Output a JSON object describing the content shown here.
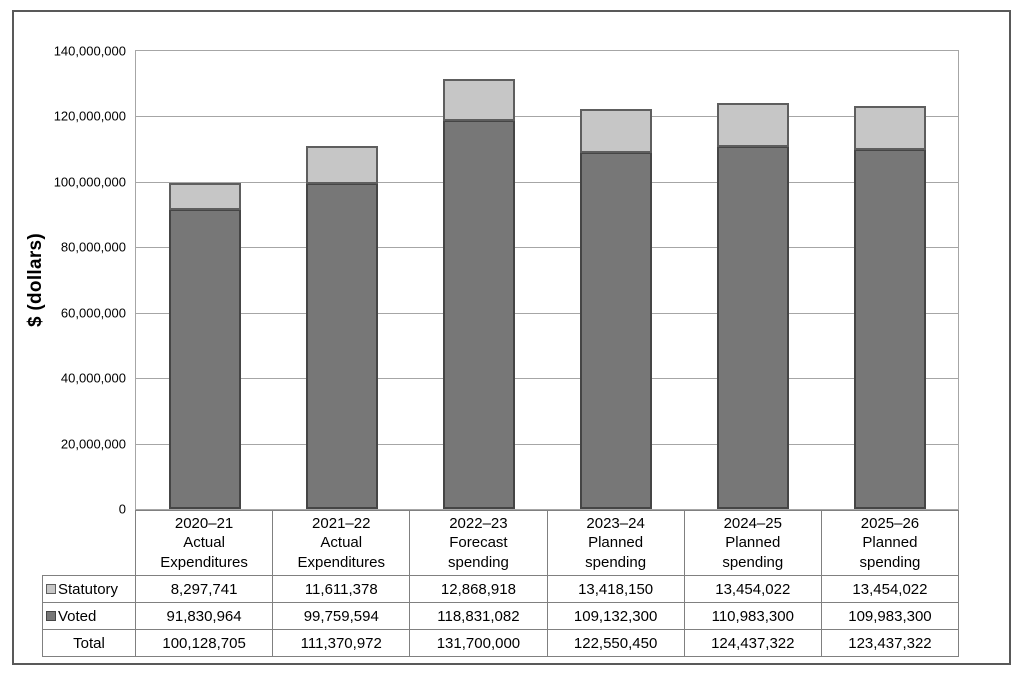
{
  "colors": {
    "frame_border": "#595959",
    "plot_border": "#a6a6a6",
    "gridline": "#a6a6a6",
    "table_border": "#808080",
    "text": "#000000",
    "statutory_fill": "#c6c6c6",
    "statutory_border": "#5e5e5e",
    "voted_fill": "#777777",
    "voted_border": "#454545"
  },
  "chart_data": {
    "type": "bar",
    "stacked": true,
    "title": "",
    "xlabel": "",
    "ylabel": "$ (dollars)",
    "ylim": [
      0,
      140000000
    ],
    "ytick_interval": 20000000,
    "ytick_labels": [
      "0",
      "20,000,000",
      "40,000,000",
      "60,000,000",
      "80,000,000",
      "100,000,000",
      "120,000,000",
      "140,000,000"
    ],
    "grid": true,
    "legend_position": "table-left-column",
    "categories": [
      "2020–21\nActual\nExpenditures",
      "2021–22\nActual\nExpenditures",
      "2022–23\nForecast\nspending",
      "2023–24\nPlanned\nspending",
      "2024–25\nPlanned\nspending",
      "2025–26\nPlanned\nspending"
    ],
    "series": [
      {
        "name": "Statutory",
        "stack_position": "top",
        "fill": "#c6c6c6",
        "border_color": "#5e5e5e",
        "values": [
          8297741,
          11611378,
          12868918,
          13418150,
          13454022,
          13454022
        ]
      },
      {
        "name": "Voted",
        "stack_position": "bottom",
        "fill": "#777777",
        "border_color": "#454545",
        "values": [
          91830964,
          99759594,
          118831082,
          109132300,
          110983300,
          109983300
        ]
      }
    ],
    "totals": [
      100128705,
      111370972,
      131700000,
      122550450,
      124437322,
      123437322
    ]
  },
  "table": {
    "rows": [
      {
        "label": "Statutory",
        "key": "statutory",
        "values": [
          "8,297,741",
          "11,611,378",
          "12,868,918",
          "13,418,150",
          "13,454,022",
          "13,454,022"
        ]
      },
      {
        "label": "Voted",
        "key": "voted",
        "values": [
          "91,830,964",
          "99,759,594",
          "118,831,082",
          "109,132,300",
          "110,983,300",
          "109,983,300"
        ]
      },
      {
        "label": "Total",
        "key": null,
        "values": [
          "100,128,705",
          "111,370,972",
          "131,700,000",
          "122,550,450",
          "124,437,322",
          "123,437,322"
        ]
      }
    ]
  }
}
